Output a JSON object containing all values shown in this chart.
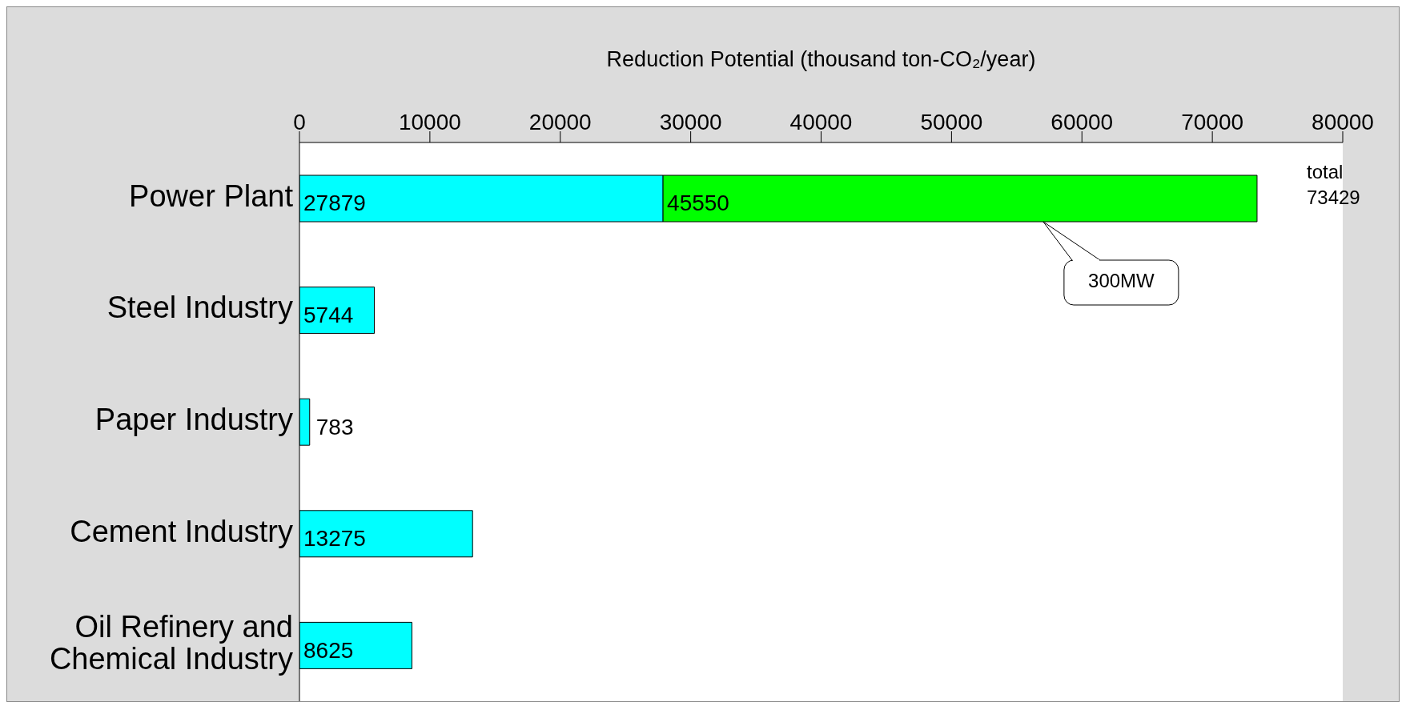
{
  "chart_data": {
    "type": "bar",
    "orientation": "horizontal",
    "stacked": true,
    "xlabel": "Reduction Potential (thousand ton-CO₂/year)",
    "categories": [
      "Power Plant",
      "Steel Industry",
      "Paper Industry",
      "Cement Industry",
      "Oil Refinery and Chemical Industry"
    ],
    "series": [
      {
        "color": "#00ffff",
        "values": [
          27879,
          5744,
          783,
          13275,
          8625
        ]
      },
      {
        "color": "#00ff00",
        "values": [
          45550,
          null,
          null,
          null,
          null
        ]
      }
    ],
    "xlim": [
      0,
      80000
    ],
    "xticks": [
      0,
      10000,
      20000,
      30000,
      40000,
      50000,
      60000,
      70000,
      80000
    ],
    "data_labels": true,
    "totals": [
      "total 73429",
      null,
      null,
      null,
      null
    ],
    "annotations": [
      "300MW"
    ]
  }
}
